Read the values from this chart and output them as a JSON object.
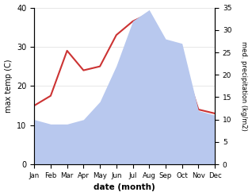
{
  "months": [
    "Jan",
    "Feb",
    "Mar",
    "Apr",
    "May",
    "Jun",
    "Jul",
    "Aug",
    "Sep",
    "Oct",
    "Nov",
    "Dec"
  ],
  "temp": [
    15.0,
    17.5,
    29.0,
    24.0,
    25.0,
    33.0,
    36.5,
    38.5,
    30.0,
    27.0,
    14.0,
    13.0
  ],
  "precip": [
    10.0,
    9.0,
    9.0,
    10.0,
    14.0,
    22.0,
    32.0,
    34.5,
    28.0,
    27.0,
    12.0,
    11.0
  ],
  "temp_color": "#cc3333",
  "precip_fill_color": "#b8c8ee",
  "left_ylim": [
    0,
    40
  ],
  "right_ylim": [
    0,
    35
  ],
  "left_yticks": [
    0,
    10,
    20,
    30,
    40
  ],
  "right_yticks": [
    0,
    5,
    10,
    15,
    20,
    25,
    30,
    35
  ],
  "xlabel": "date (month)",
  "ylabel_left": "max temp (C)",
  "ylabel_right": "med. precipitation (kg/m2)",
  "bg_color": "#ffffff"
}
